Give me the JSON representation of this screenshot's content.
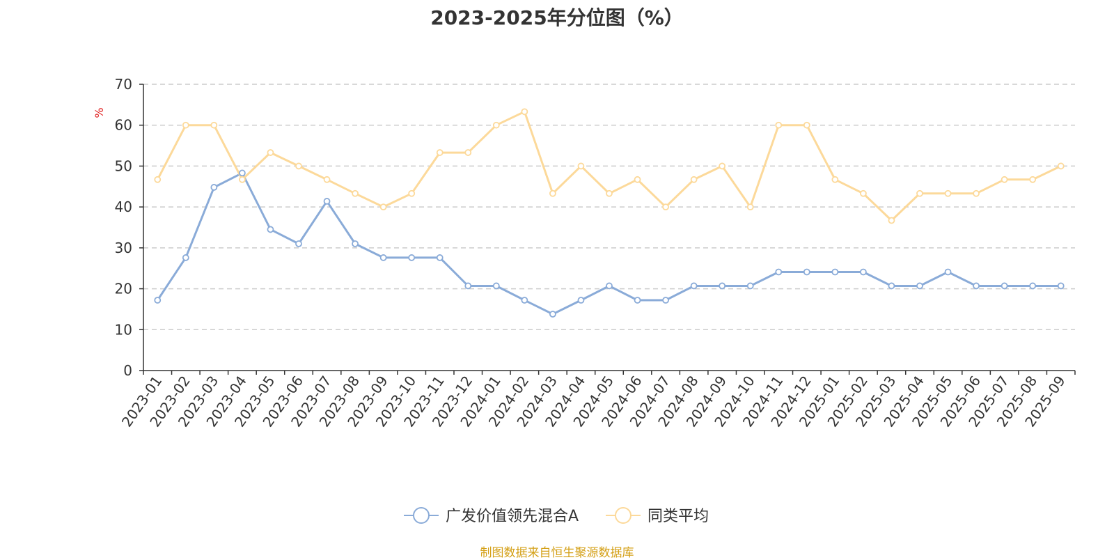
{
  "chart_data": {
    "type": "line",
    "title": "2023-2025年分位图（%）",
    "ylabel": "%",
    "xlabel": "",
    "ylim": [
      0,
      70
    ],
    "yticks": [
      0,
      10,
      20,
      30,
      40,
      50,
      60,
      70
    ],
    "grid": true,
    "legend_position": "bottom-center",
    "categories": [
      "2023-01",
      "2023-02",
      "2023-03",
      "2023-04",
      "2023-05",
      "2023-06",
      "2023-07",
      "2023-08",
      "2023-09",
      "2023-10",
      "2023-11",
      "2023-12",
      "2024-01",
      "2024-02",
      "2024-03",
      "2024-04",
      "2024-05",
      "2024-06",
      "2024-07",
      "2024-08",
      "2024-09",
      "2024-10",
      "2024-11",
      "2024-12",
      "2025-01",
      "2025-02",
      "2025-03",
      "2025-04",
      "2025-05",
      "2025-06",
      "2025-07",
      "2025-08",
      "2025-09"
    ],
    "series": [
      {
        "name": "广发价值领先混合A",
        "color": "#8aabd8",
        "values": [
          17.2,
          27.6,
          44.8,
          48.3,
          34.5,
          31.0,
          41.4,
          31.0,
          27.6,
          27.6,
          27.6,
          20.7,
          20.7,
          17.2,
          13.8,
          17.2,
          20.7,
          17.2,
          17.2,
          20.7,
          20.7,
          20.7,
          24.1,
          24.1,
          24.1,
          24.1,
          20.7,
          20.7,
          24.1,
          20.7,
          20.7,
          20.7,
          20.7
        ]
      },
      {
        "name": "同类平均",
        "color": "#fcd99a",
        "values": [
          46.7,
          60.0,
          60.0,
          46.7,
          53.3,
          50.0,
          46.7,
          43.3,
          40.0,
          43.3,
          53.3,
          53.3,
          60.0,
          63.3,
          43.3,
          50.0,
          43.3,
          46.7,
          40.0,
          46.7,
          50.0,
          40.0,
          60.0,
          60.0,
          46.7,
          43.3,
          36.7,
          43.3,
          43.3,
          43.3,
          46.7,
          46.7,
          50.0
        ]
      }
    ],
    "source": "制图数据来自恒生聚源数据库"
  }
}
